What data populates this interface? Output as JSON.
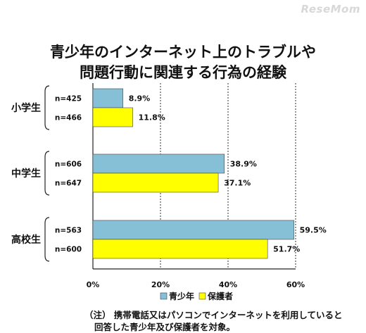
{
  "watermark": "ReseMom",
  "title_line1": "青少年のインターネット上のトラブルや",
  "title_line2": "問題行動に関連する行為の経験",
  "note_line1": "（注） 携帯電話又はパソコンでインターネットを利用していると",
  "note_line2": "回答した青少年及び保護者を対象。",
  "chart_data": {
    "type": "bar",
    "orientation": "horizontal",
    "categories": [
      "小学生",
      "中学生",
      "高校生"
    ],
    "series": [
      {
        "name": "青少年",
        "color": "#86C0D6",
        "values": [
          8.9,
          38.9,
          59.5
        ],
        "value_labels": [
          "8.9%",
          "38.9%",
          "59.5%"
        ],
        "n_labels": [
          "n=425",
          "n=606",
          "n=563"
        ]
      },
      {
        "name": "保護者",
        "color": "#FFFF00",
        "values": [
          11.8,
          37.1,
          51.7
        ],
        "value_labels": [
          "11.8%",
          "37.1%",
          "51.7%"
        ],
        "n_labels": [
          "n=466",
          "n=647",
          "n=600"
        ]
      }
    ],
    "x_ticks": [
      "0%",
      "20%",
      "40%",
      "60%"
    ],
    "xlim": [
      0,
      60
    ],
    "grid": "dashed vertical",
    "legend": "bottom"
  }
}
